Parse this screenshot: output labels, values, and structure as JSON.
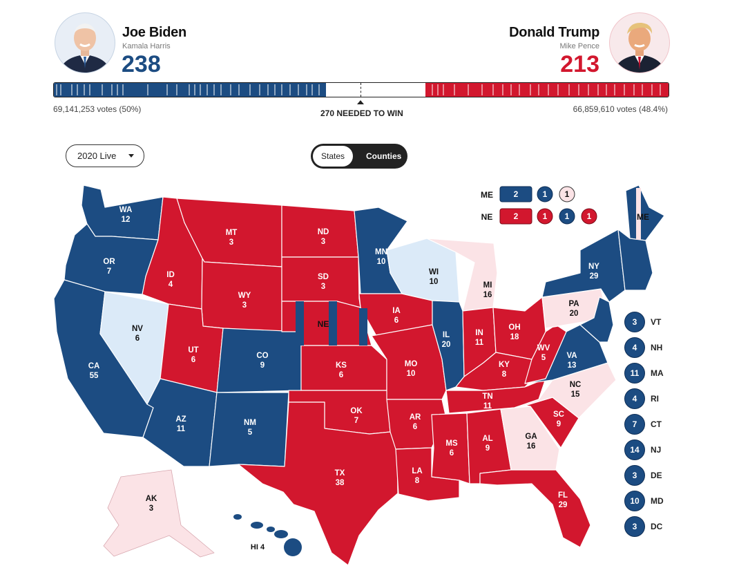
{
  "colors": {
    "dem": "#1c4c82",
    "rep": "#d2172e",
    "lean_dem": "#dbeaf8",
    "lean_rep": "#fbe3e6"
  },
  "candidates": {
    "dem": {
      "name": "Joe Biden",
      "running_mate": "Kamala Harris",
      "electoral_votes": "238",
      "popular_votes": "69,141,253 votes (50%)",
      "avatar_icon": "joe-biden-portrait"
    },
    "rep": {
      "name": "Donald Trump",
      "running_mate": "Mike Pence",
      "electoral_votes": "213",
      "popular_votes": "66,859,610 votes (48.4%)",
      "avatar_icon": "donald-trump-portrait"
    }
  },
  "progress": {
    "needed_label": "270 NEEDED TO WIN",
    "total": 538,
    "dem": 238,
    "rep": 213
  },
  "controls": {
    "year_select": "2020 Live",
    "toggle_states": "States",
    "toggle_counties": "Counties"
  },
  "map": {
    "states": [
      {
        "abbr": "WA",
        "ev": "12",
        "party": "dem"
      },
      {
        "abbr": "OR",
        "ev": "7",
        "party": "dem"
      },
      {
        "abbr": "CA",
        "ev": "55",
        "party": "dem"
      },
      {
        "abbr": "NV",
        "ev": "6",
        "party": "lean_dem"
      },
      {
        "abbr": "ID",
        "ev": "4",
        "party": "rep"
      },
      {
        "abbr": "MT",
        "ev": "3",
        "party": "rep"
      },
      {
        "abbr": "WY",
        "ev": "3",
        "party": "rep"
      },
      {
        "abbr": "UT",
        "ev": "6",
        "party": "rep"
      },
      {
        "abbr": "AZ",
        "ev": "11",
        "party": "dem"
      },
      {
        "abbr": "CO",
        "ev": "9",
        "party": "dem"
      },
      {
        "abbr": "NM",
        "ev": "5",
        "party": "dem"
      },
      {
        "abbr": "ND",
        "ev": "3",
        "party": "rep"
      },
      {
        "abbr": "SD",
        "ev": "3",
        "party": "rep"
      },
      {
        "abbr": "NE",
        "ev": "",
        "party": "rep"
      },
      {
        "abbr": "KS",
        "ev": "6",
        "party": "rep"
      },
      {
        "abbr": "OK",
        "ev": "7",
        "party": "rep"
      },
      {
        "abbr": "TX",
        "ev": "38",
        "party": "rep"
      },
      {
        "abbr": "MN",
        "ev": "10",
        "party": "dem"
      },
      {
        "abbr": "IA",
        "ev": "6",
        "party": "rep"
      },
      {
        "abbr": "MO",
        "ev": "10",
        "party": "rep"
      },
      {
        "abbr": "AR",
        "ev": "6",
        "party": "rep"
      },
      {
        "abbr": "LA",
        "ev": "8",
        "party": "rep"
      },
      {
        "abbr": "WI",
        "ev": "10",
        "party": "lean_dem"
      },
      {
        "abbr": "IL",
        "ev": "20",
        "party": "dem"
      },
      {
        "abbr": "MI",
        "ev": "16",
        "party": "lean_rep"
      },
      {
        "abbr": "IN",
        "ev": "11",
        "party": "rep"
      },
      {
        "abbr": "OH",
        "ev": "18",
        "party": "rep"
      },
      {
        "abbr": "KY",
        "ev": "8",
        "party": "rep"
      },
      {
        "abbr": "TN",
        "ev": "11",
        "party": "rep"
      },
      {
        "abbr": "MS",
        "ev": "6",
        "party": "rep"
      },
      {
        "abbr": "AL",
        "ev": "9",
        "party": "rep"
      },
      {
        "abbr": "GA",
        "ev": "16",
        "party": "lean_rep"
      },
      {
        "abbr": "FL",
        "ev": "29",
        "party": "rep"
      },
      {
        "abbr": "SC",
        "ev": "9",
        "party": "rep"
      },
      {
        "abbr": "NC",
        "ev": "15",
        "party": "lean_rep"
      },
      {
        "abbr": "VA",
        "ev": "13",
        "party": "dem"
      },
      {
        "abbr": "WV",
        "ev": "5",
        "party": "rep"
      },
      {
        "abbr": "PA",
        "ev": "20",
        "party": "lean_rep"
      },
      {
        "abbr": "NY",
        "ev": "29",
        "party": "dem"
      },
      {
        "abbr": "ME",
        "ev": "",
        "party": "dem"
      },
      {
        "abbr": "AK",
        "ev": "3",
        "party": "lean_rep"
      },
      {
        "abbr": "HI",
        "ev": "4",
        "party": "dem"
      }
    ],
    "split_districts": {
      "me": {
        "label": "ME",
        "items": [
          {
            "value": "2",
            "party": "dem"
          },
          {
            "value": "1",
            "party": "dem"
          },
          {
            "value": "1",
            "party": "lean_rep"
          }
        ]
      },
      "ne": {
        "label": "NE",
        "items": [
          {
            "value": "2",
            "party": "rep"
          },
          {
            "value": "1",
            "party": "rep"
          },
          {
            "value": "1",
            "party": "dem"
          },
          {
            "value": "1",
            "party": "rep"
          }
        ]
      }
    },
    "small_states": [
      {
        "abbr": "VT",
        "ev": "3"
      },
      {
        "abbr": "NH",
        "ev": "4"
      },
      {
        "abbr": "MA",
        "ev": "11"
      },
      {
        "abbr": "RI",
        "ev": "4"
      },
      {
        "abbr": "CT",
        "ev": "7"
      },
      {
        "abbr": "NJ",
        "ev": "14"
      },
      {
        "abbr": "DE",
        "ev": "3"
      },
      {
        "abbr": "MD",
        "ev": "10"
      },
      {
        "abbr": "DC",
        "ev": "3"
      }
    ]
  }
}
